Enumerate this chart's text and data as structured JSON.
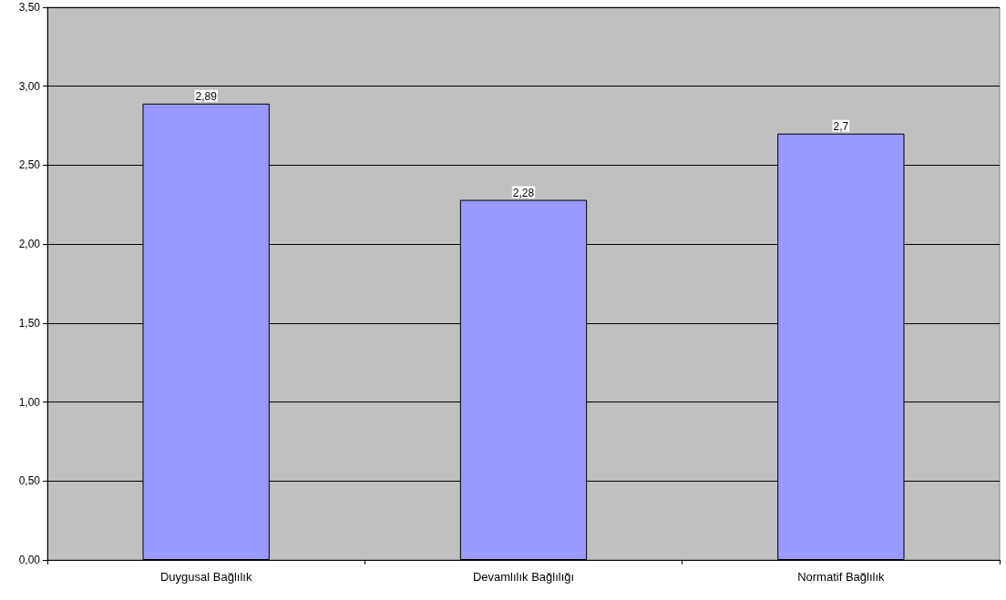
{
  "chart_data": {
    "type": "bar",
    "categories": [
      "Duygusal Bağlılık",
      "Devamlılık Bağlılığı",
      "Normatif Bağlılık"
    ],
    "values": [
      2.89,
      2.28,
      2.7
    ],
    "value_labels": [
      "2,89",
      "2,28",
      "2,7"
    ],
    "color": "#9999ff",
    "ylim": [
      0,
      3.5
    ],
    "yticks": [
      {
        "value": 0,
        "label": "0,00"
      },
      {
        "value": 0.5,
        "label": "0,50"
      },
      {
        "value": 1,
        "label": "1,00"
      },
      {
        "value": 1.5,
        "label": "1,50"
      },
      {
        "value": 2,
        "label": "2,00"
      },
      {
        "value": 2.5,
        "label": "2,50"
      },
      {
        "value": 3,
        "label": "3,00"
      },
      {
        "value": 3.5,
        "label": "3,50"
      }
    ],
    "grid": "y"
  }
}
